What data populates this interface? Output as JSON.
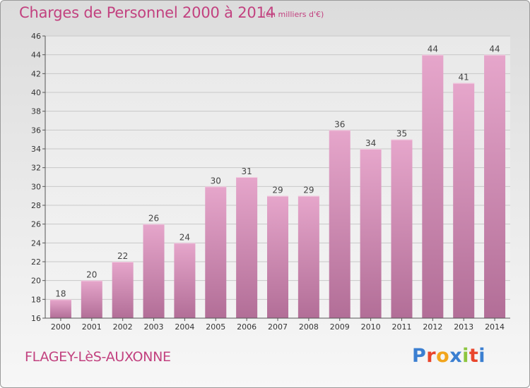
{
  "title": "Charges de Personnel 2000 à 2014",
  "unit_note": "(en milliers d'€)",
  "commune": "FLAGEY-LèS-AUXONNE",
  "logo": {
    "text": "Proxiti",
    "colors": [
      "#3b7fd1",
      "#e9452c",
      "#f2a51c",
      "#3b7fd1",
      "#8cc63f",
      "#e9452c",
      "#3b7fd1"
    ]
  },
  "colors": {
    "title": "#c2417f",
    "bar_top": "#e6a6cb",
    "bar_bottom": "#b26e97",
    "axis": "#555555",
    "grid": "#c8c8c8"
  },
  "chart_data": {
    "type": "bar",
    "categories": [
      "2000",
      "2001",
      "2002",
      "2003",
      "2004",
      "2005",
      "2006",
      "2007",
      "2008",
      "2009",
      "2010",
      "2011",
      "2012",
      "2013",
      "2014"
    ],
    "values": [
      18,
      20,
      22,
      26,
      24,
      30,
      31,
      29,
      29,
      36,
      34,
      35,
      44,
      41,
      44
    ],
    "data_labels": [
      "18",
      "20",
      "22",
      "26",
      "24",
      "30",
      "31",
      "29",
      "29",
      "36",
      "34",
      "35",
      "44",
      "41",
      "44"
    ],
    "title": "Charges de Personnel 2000 à 2014",
    "xlabel": "",
    "ylabel": "",
    "ylim": [
      16,
      46
    ],
    "yticks": [
      16,
      18,
      20,
      22,
      24,
      26,
      28,
      30,
      32,
      34,
      36,
      38,
      40,
      42,
      44,
      46
    ],
    "grid": true,
    "legend": "none"
  }
}
